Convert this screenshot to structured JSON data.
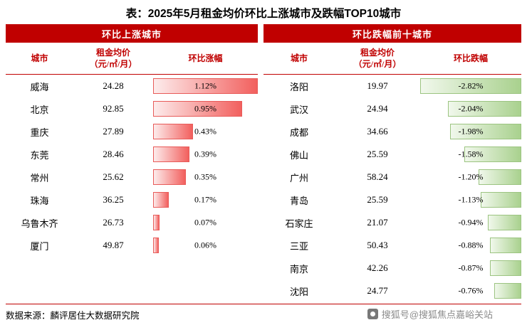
{
  "title": "表：2025年5月租金均价环比上涨城市及跌幅TOP10城市",
  "panels": {
    "left": {
      "band": "环比上涨城市",
      "col_city": "城市",
      "col_price_1": "租金均价",
      "col_price_2": "（元/㎡/月）",
      "col_change": "环比涨幅",
      "rows": [
        {
          "city": "威海",
          "price": "24.28",
          "change": "1.12%",
          "pct": 1.12
        },
        {
          "city": "北京",
          "price": "92.85",
          "change": "0.95%",
          "pct": 0.95
        },
        {
          "city": "重庆",
          "price": "27.89",
          "change": "0.43%",
          "pct": 0.43
        },
        {
          "city": "东莞",
          "price": "28.46",
          "change": "0.39%",
          "pct": 0.39
        },
        {
          "city": "常州",
          "price": "25.62",
          "change": "0.35%",
          "pct": 0.35
        },
        {
          "city": "珠海",
          "price": "36.25",
          "change": "0.17%",
          "pct": 0.17
        },
        {
          "city": "乌鲁木齐",
          "price": "26.73",
          "change": "0.07%",
          "pct": 0.07
        },
        {
          "city": "厦门",
          "price": "49.87",
          "change": "0.06%",
          "pct": 0.06
        }
      ]
    },
    "right": {
      "band": "环比跌幅前十城市",
      "col_city": "城市",
      "col_price_1": "租金均价",
      "col_price_2": "（元/㎡/月）",
      "col_change": "环比跌幅",
      "rows": [
        {
          "city": "洛阳",
          "price": "19.97",
          "change": "-2.82%",
          "pct": 2.82
        },
        {
          "city": "武汉",
          "price": "24.94",
          "change": "-2.04%",
          "pct": 2.04
        },
        {
          "city": "成都",
          "price": "34.66",
          "change": "-1.98%",
          "pct": 1.98
        },
        {
          "city": "佛山",
          "price": "25.59",
          "change": "-1.58%",
          "pct": 1.58
        },
        {
          "city": "广州",
          "price": "58.24",
          "change": "-1.20%",
          "pct": 1.2
        },
        {
          "city": "青岛",
          "price": "25.59",
          "change": "-1.13%",
          "pct": 1.13
        },
        {
          "city": "石家庄",
          "price": "21.07",
          "change": "-0.94%",
          "pct": 0.94
        },
        {
          "city": "三亚",
          "price": "50.43",
          "change": "-0.88%",
          "pct": 0.88
        },
        {
          "city": "南京",
          "price": "42.26",
          "change": "-0.87%",
          "pct": 0.87
        },
        {
          "city": "沈阳",
          "price": "24.77",
          "change": "-0.76%",
          "pct": 0.76
        }
      ]
    }
  },
  "footer": {
    "source": "数据来源：麟评居住大数据研究院",
    "watermark": "搜狐号@搜狐焦点嘉峪关站"
  },
  "colors": {
    "band": "#c00000",
    "bar_up": "#f2605e",
    "bar_down": "#a9d18e",
    "header_text": "#c00000"
  },
  "chart_data": [
    {
      "type": "bar",
      "orientation": "horizontal",
      "title": "环比上涨城市",
      "categories": [
        "威海",
        "北京",
        "重庆",
        "东莞",
        "常州",
        "珠海",
        "乌鲁木齐",
        "厦门"
      ],
      "series": [
        {
          "name": "租金均价（元/㎡/月）",
          "values": [
            24.28,
            92.85,
            27.89,
            28.46,
            25.62,
            36.25,
            26.73,
            49.87
          ]
        },
        {
          "name": "环比涨幅(%)",
          "values": [
            1.12,
            0.95,
            0.43,
            0.39,
            0.35,
            0.17,
            0.07,
            0.06
          ]
        }
      ],
      "xlim": [
        0,
        1.12
      ],
      "grid": false,
      "legend": "none"
    },
    {
      "type": "bar",
      "orientation": "horizontal",
      "title": "环比跌幅前十城市",
      "categories": [
        "洛阳",
        "武汉",
        "成都",
        "佛山",
        "广州",
        "青岛",
        "石家庄",
        "三亚",
        "南京",
        "沈阳"
      ],
      "series": [
        {
          "name": "租金均价（元/㎡/月）",
          "values": [
            19.97,
            24.94,
            34.66,
            25.59,
            58.24,
            25.59,
            21.07,
            50.43,
            42.26,
            24.77
          ]
        },
        {
          "name": "环比跌幅(%)",
          "values": [
            -2.82,
            -2.04,
            -1.98,
            -1.58,
            -1.2,
            -1.13,
            -0.94,
            -0.88,
            -0.87,
            -0.76
          ]
        }
      ],
      "xlim": [
        -2.82,
        0
      ],
      "grid": false,
      "legend": "none"
    }
  ]
}
